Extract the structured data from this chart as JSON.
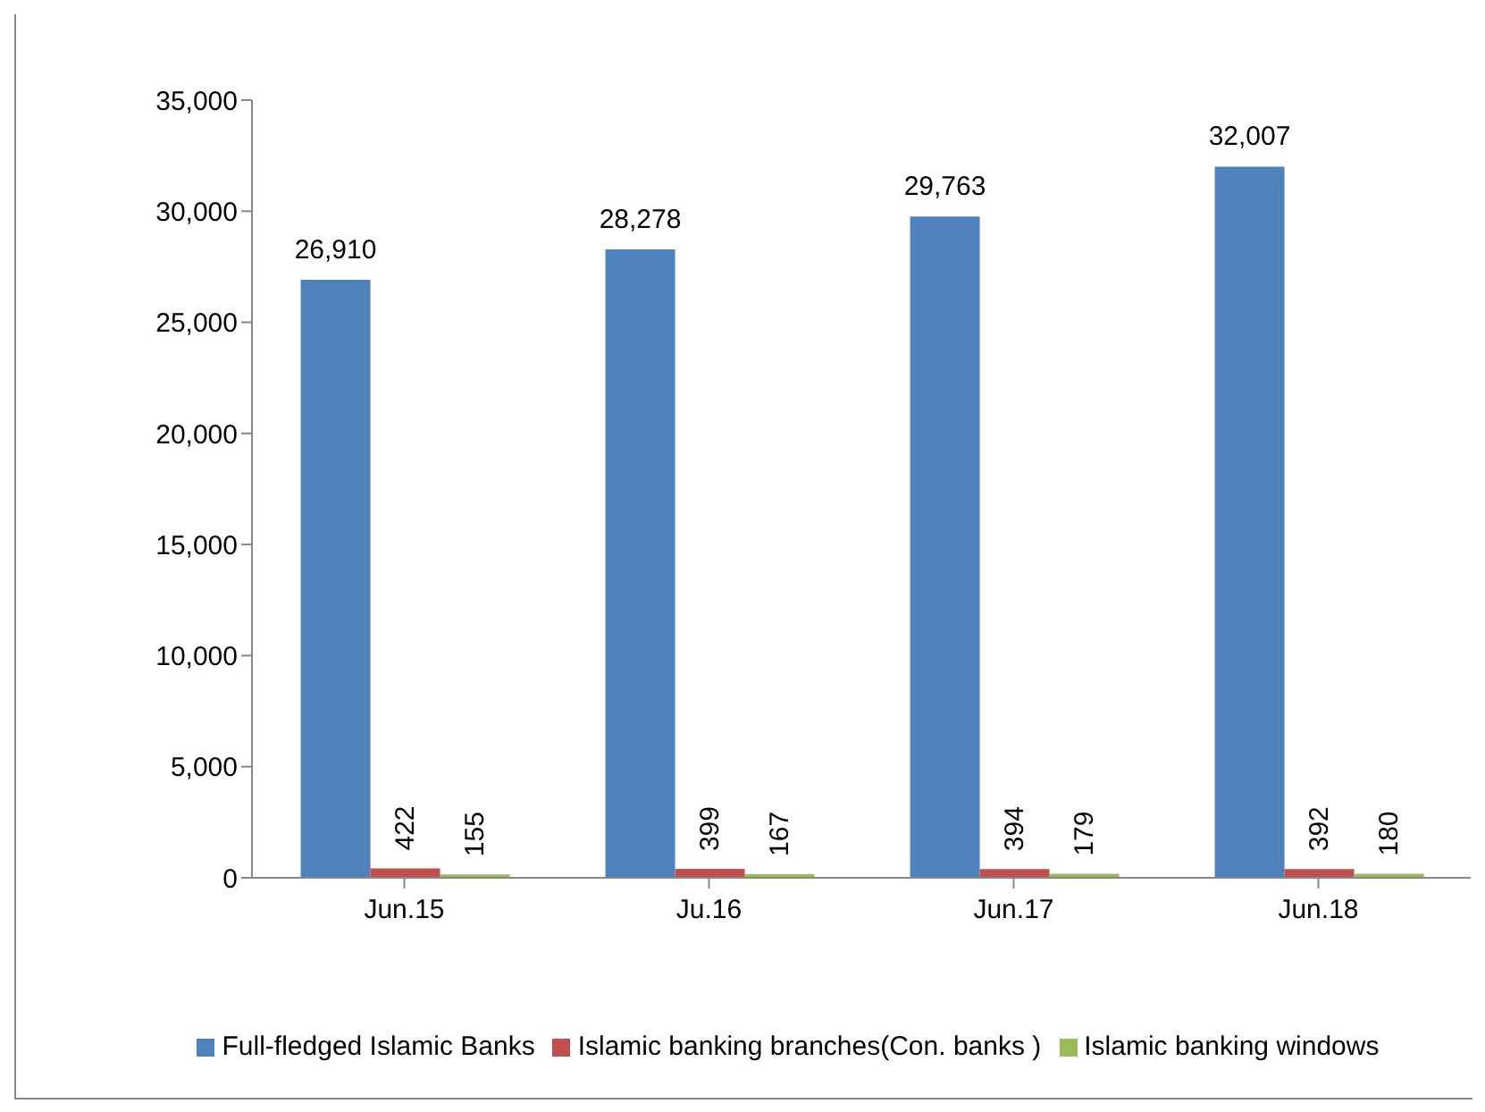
{
  "chart_data": {
    "type": "bar",
    "categories": [
      "Jun.15",
      "Ju.16",
      "Jun.17",
      "Jun.18"
    ],
    "series": [
      {
        "name": "Full-fledged Islamic Banks",
        "color": "#4f81bd",
        "values": [
          26910,
          28278,
          29763,
          32007
        ],
        "value_labels": [
          "26,910",
          "28,278",
          "29,763",
          "32,007"
        ]
      },
      {
        "name": "Islamic banking branches(Con. banks )",
        "color": "#c0504d",
        "values": [
          422,
          399,
          394,
          392
        ]
      },
      {
        "name": "Islamic banking windows",
        "color": "#9bbb59",
        "values": [
          155,
          167,
          179,
          180
        ]
      }
    ],
    "ylim": [
      0,
      35000
    ],
    "yticks": [
      0,
      {
        "value": 5000,
        "label": "5,000"
      },
      {
        "value": 10000,
        "label": "10,000"
      },
      {
        "value": 15000,
        "label": "15,000"
      },
      {
        "value": 20000,
        "label": "20,000"
      },
      {
        "value": 25000,
        "label": "25,000"
      },
      {
        "value": 30000,
        "label": "30,000"
      },
      {
        "value": 35000,
        "label": "35,000"
      }
    ],
    "legend": "bottom",
    "data_labels": true
  }
}
